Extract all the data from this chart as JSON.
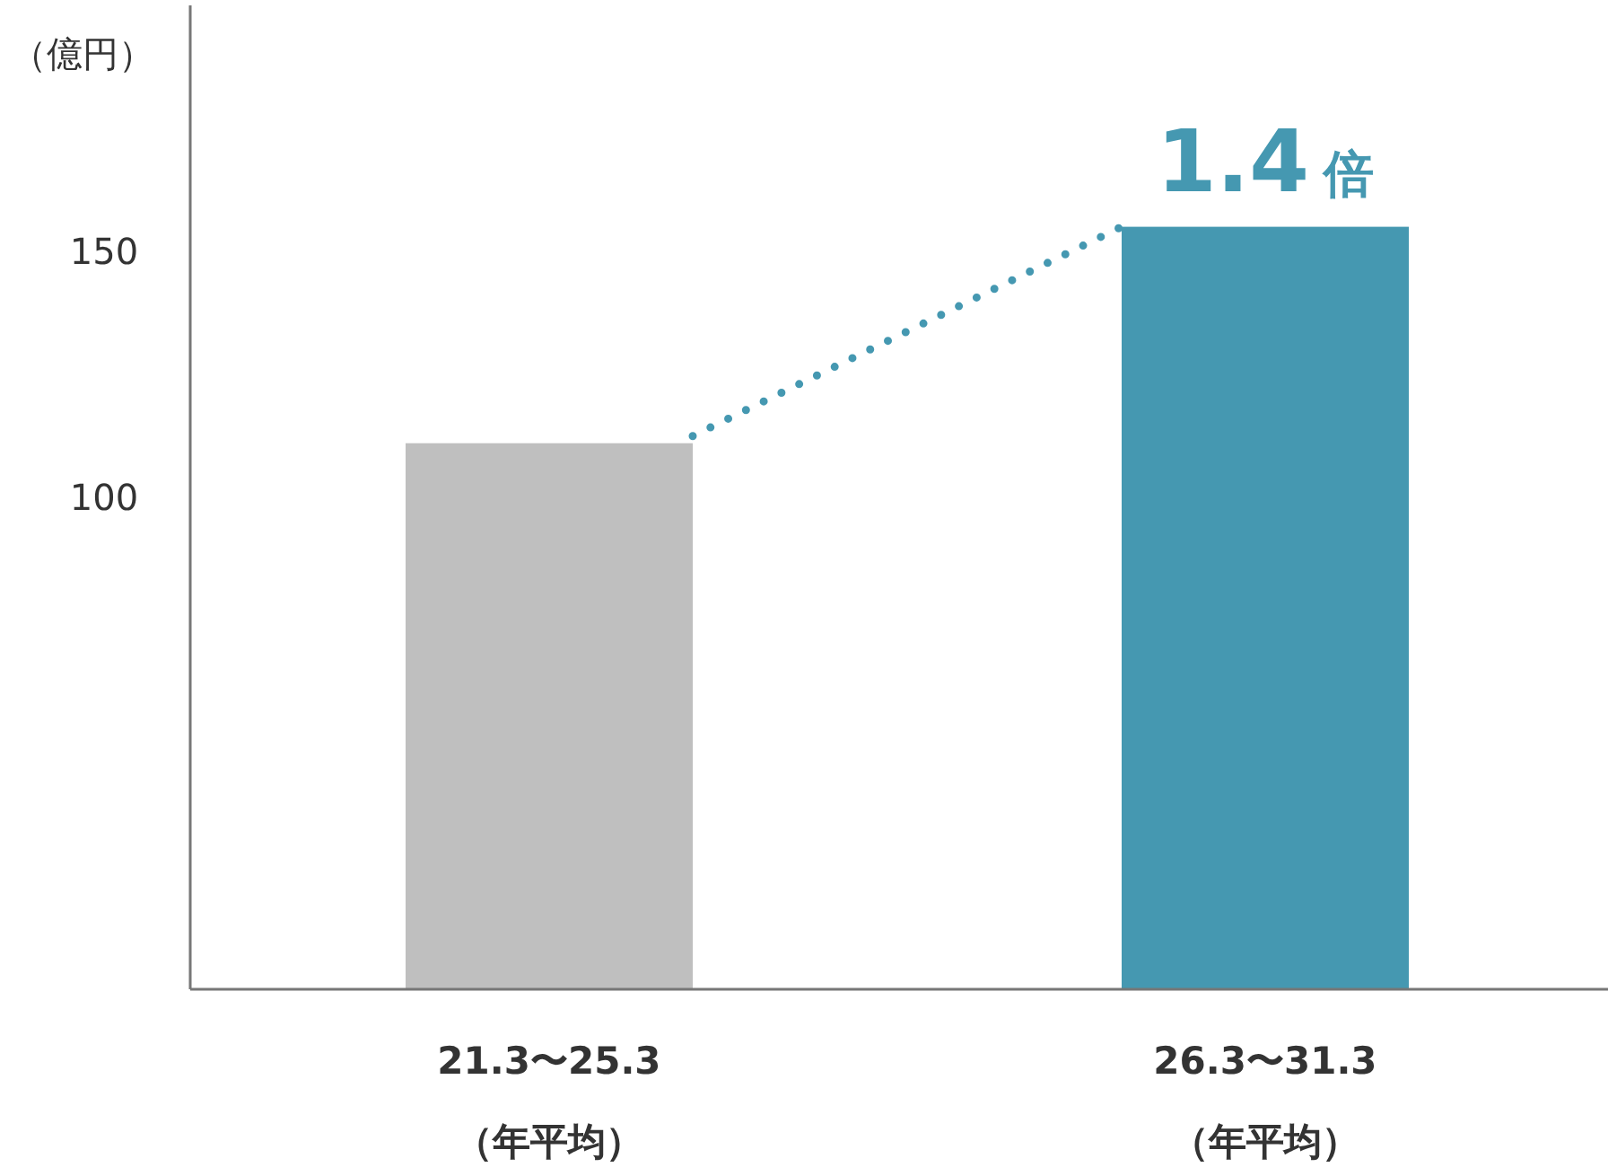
{
  "chart_data": {
    "type": "bar",
    "ylabel": "（億円）",
    "categories": [
      "21.3〜25.3\n（年平均）",
      "26.3〜31.3\n（年平均）"
    ],
    "values": [
      111,
      155
    ],
    "colors": [
      "#bfbfbf",
      "#4598b1"
    ],
    "ylim": [
      0,
      200
    ],
    "yticks": [
      100,
      150
    ],
    "grid": false,
    "annotations": [
      {
        "text": "1.4 倍",
        "x": "26.3〜31.3\n（年平均）",
        "y": 155
      }
    ]
  }
}
